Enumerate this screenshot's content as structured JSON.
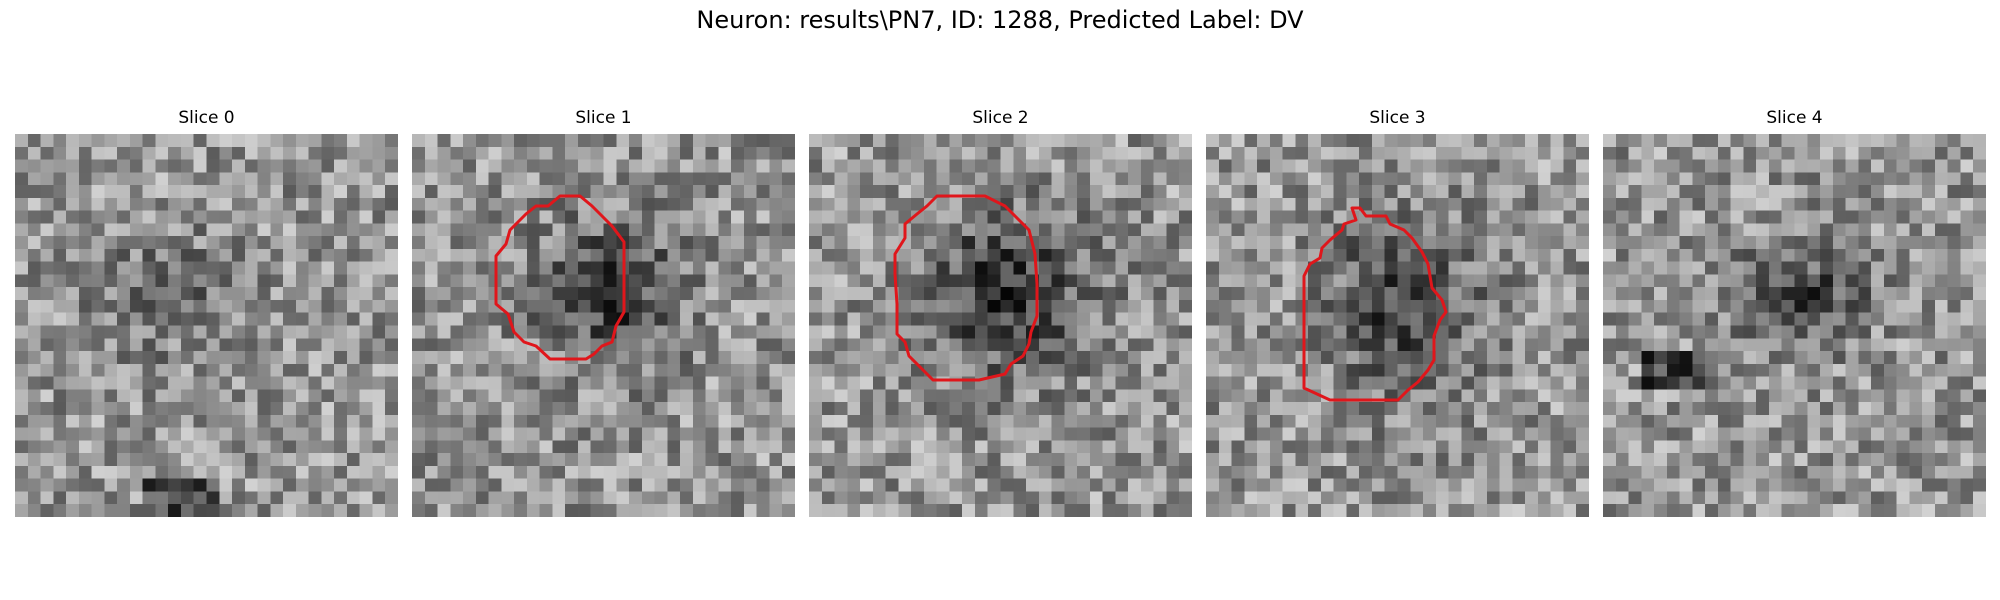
{
  "figure": {
    "title": "Neuron: results\\PN7, ID: 1288, Predicted Label: DV",
    "panels": [
      {
        "label": "Slice 0",
        "has_contour": false
      },
      {
        "label": "Slice 1",
        "has_contour": true
      },
      {
        "label": "Slice 2",
        "has_contour": true
      },
      {
        "label": "Slice 3",
        "has_contour": true
      },
      {
        "label": "Slice 4",
        "has_contour": false
      }
    ],
    "contour_color": "#e0161b",
    "colormap": "gray"
  }
}
